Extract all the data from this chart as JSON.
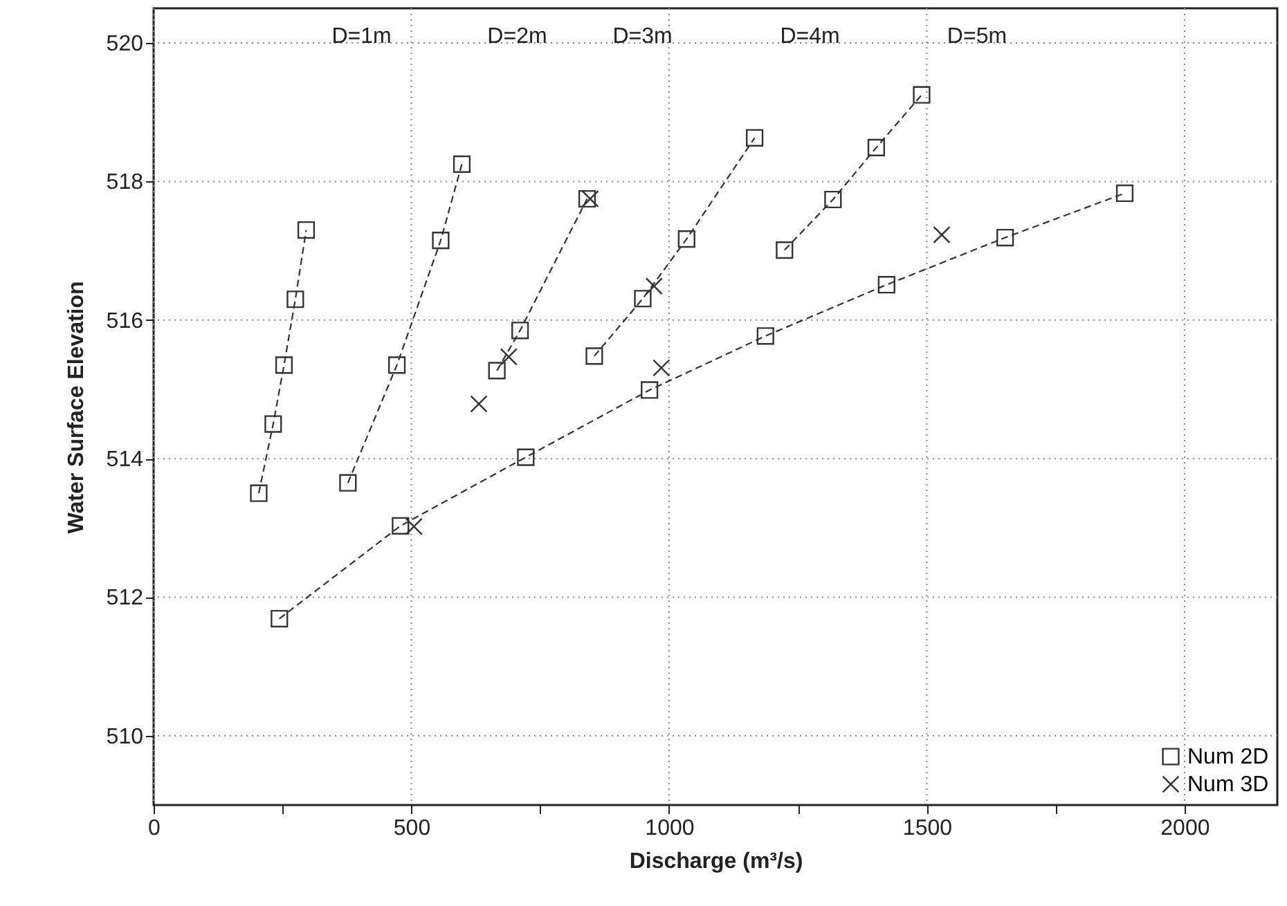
{
  "chart_data": {
    "type": "line",
    "xlabel": "Discharge (m³/s)",
    "ylabel": "Water Surface Elevation",
    "xlim": [
      0,
      2180
    ],
    "ylim": [
      509,
      520.5
    ],
    "xticks": [
      0,
      {
        "value": 250,
        "label": null
      },
      500,
      {
        "value": 750,
        "label": null
      },
      1000,
      {
        "value": 1250,
        "label": null
      },
      1500,
      {
        "value": 1750,
        "label": null
      },
      2000
    ],
    "yticks": [
      510,
      512,
      514,
      516,
      518,
      520
    ],
    "grid": true,
    "legend": "bottom right",
    "annotations": [
      "D=1m",
      "D=2m",
      "D=3m",
      "D=4m",
      "D=5m"
    ],
    "series": [
      {
        "name": "Num 2D",
        "marker": "square",
        "line_style": "dashed",
        "color": "#333333",
        "x": [
          204,
          232,
          253,
          275,
          296
        ],
        "values": [
          513.5,
          514.5,
          515.35,
          516.3,
          517.3
        ]
      },
      {
        "type": "line",
        "marker": "square",
        "line_style": "dashed",
        "color": "#333333",
        "x": [
          377,
          472,
          557,
          598
        ],
        "values": [
          513.65,
          515.35,
          517.15,
          518.25
        ]
      },
      {
        "type": "line",
        "marker": "square",
        "line_style": "dashed",
        "color": "#333333",
        "x": [
          666,
          711,
          841
        ],
        "values": [
          515.27,
          515.85,
          517.75
        ]
      },
      {
        "type": "line",
        "marker": "square",
        "line_style": "dashed",
        "color": "#333333",
        "x": [
          855,
          949,
          1034,
          1166
        ],
        "values": [
          515.48,
          516.31,
          517.17,
          518.63
        ]
      },
      {
        "type": "line",
        "marker": "square",
        "line_style": "dashed",
        "color": "#333333",
        "x": [
          1224,
          1318,
          1402,
          1490
        ],
        "values": [
          517.01,
          517.74,
          518.49,
          519.25
        ]
      },
      {
        "type": "line",
        "marker": "square",
        "line_style": "dashed",
        "color": "#333333",
        "x": [
          244,
          479,
          722,
          962,
          1187,
          1422,
          1652,
          1884
        ],
        "values": [
          511.69,
          513.03,
          514.02,
          514.99,
          515.77,
          516.51,
          517.19,
          517.83
        ]
      },
      {
        "name": "Num 3D",
        "type": "scatter",
        "marker": "cross",
        "color": "#333333",
        "x": [
          505,
          631,
          689,
          847,
          971,
          985,
          1529
        ],
        "values": [
          513.02,
          514.79,
          515.47,
          517.75,
          516.49,
          515.31,
          517.23
        ]
      }
    ]
  }
}
